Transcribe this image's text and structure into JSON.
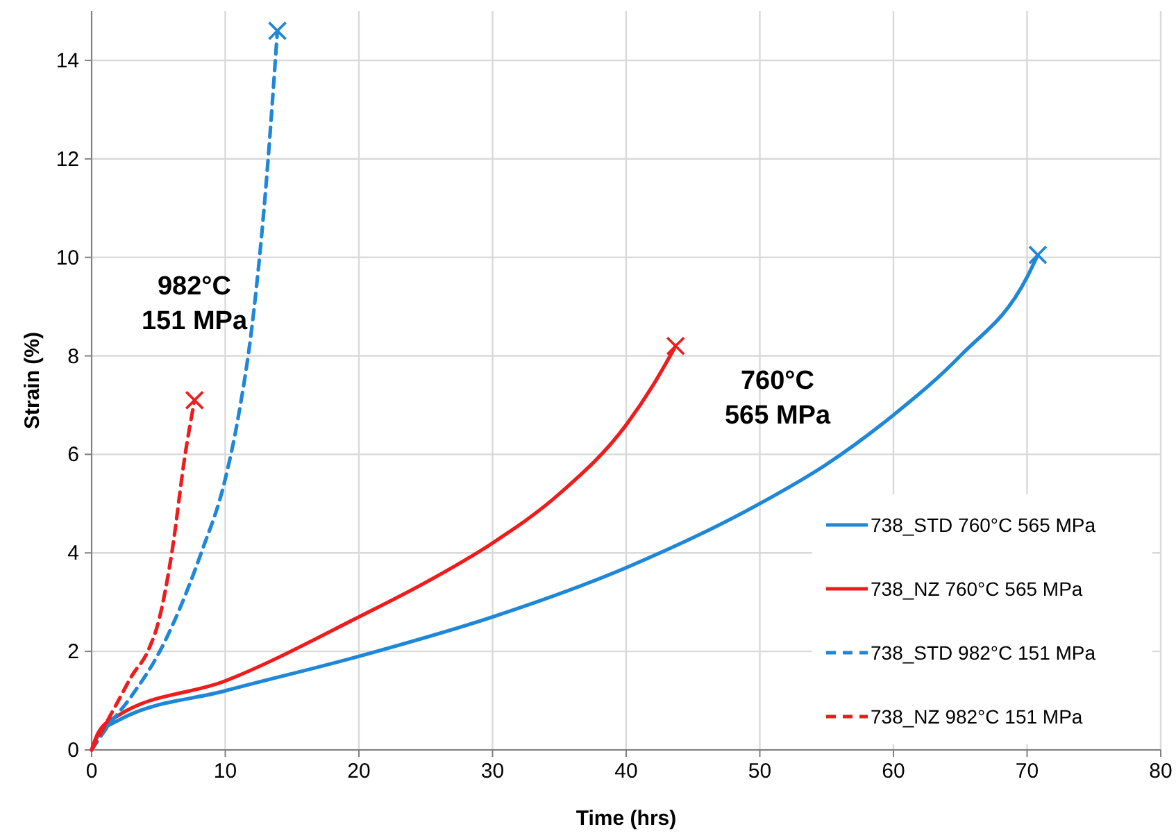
{
  "chart_data": {
    "type": "line",
    "xlabel": "Time (hrs)",
    "ylabel": "Strain (%)",
    "xlim": [
      0,
      80
    ],
    "ylim": [
      0,
      15
    ],
    "xticks": [
      0,
      10,
      20,
      30,
      40,
      50,
      60,
      70,
      80
    ],
    "yticks": [
      0,
      2,
      4,
      6,
      8,
      10,
      12,
      14
    ],
    "grid": true,
    "legend": "right",
    "marker": "none",
    "series": [
      {
        "name": "738_STD 760°C 565 MPa",
        "color": "#1f87d8",
        "line_style": "solid",
        "x": [
          0,
          0.5,
          2,
          10,
          20,
          30,
          40,
          50,
          55,
          60,
          65,
          70,
          70.8
        ],
        "values": [
          0,
          0.3,
          0.6,
          1.2,
          1.9,
          2.7,
          3.7,
          5.0,
          5.8,
          6.8,
          8.0,
          9.6,
          10.05
        ]
      },
      {
        "name": "738_NZ 760°C 565 MPa",
        "color": "#ee1c1c",
        "line_style": "solid",
        "x": [
          0,
          0.5,
          2,
          10,
          20,
          25,
          30,
          35,
          40,
          42,
          43.7
        ],
        "values": [
          0,
          0.35,
          0.7,
          1.4,
          2.7,
          3.4,
          4.2,
          5.2,
          6.6,
          7.4,
          8.2
        ]
      },
      {
        "name": "738_STD 982°C 151 MPa",
        "color": "#1f87d8",
        "line_style": "dashed",
        "x": [
          0,
          1,
          3,
          5,
          8.2,
          10,
          11,
          12,
          13,
          13.9
        ],
        "values": [
          0,
          0.4,
          1.1,
          1.95,
          4.0,
          5.5,
          6.8,
          8.6,
          11.3,
          14.6
        ]
      },
      {
        "name": "738_NZ 982°C 151 MPa",
        "color": "#ee1c1c",
        "line_style": "dashed",
        "x": [
          0,
          1,
          2,
          3,
          4.2,
          5,
          6,
          7,
          7.7
        ],
        "values": [
          0,
          0.5,
          1.0,
          1.5,
          2.0,
          2.6,
          4.0,
          6.0,
          7.1
        ]
      },
      {
        "type": "scatter",
        "marker": "cross",
        "color": "#1f87d8",
        "x": [
          70.8,
          13.9
        ],
        "values": [
          10.05,
          14.6
        ]
      },
      {
        "type": "scatter",
        "marker": "cross",
        "color": "#ee1c1c",
        "x": [
          43.7,
          7.7
        ],
        "values": [
          8.2,
          7.1
        ]
      }
    ],
    "annotations": [
      "982°C\n151 MPa",
      "760°C\n565 MPa"
    ]
  }
}
